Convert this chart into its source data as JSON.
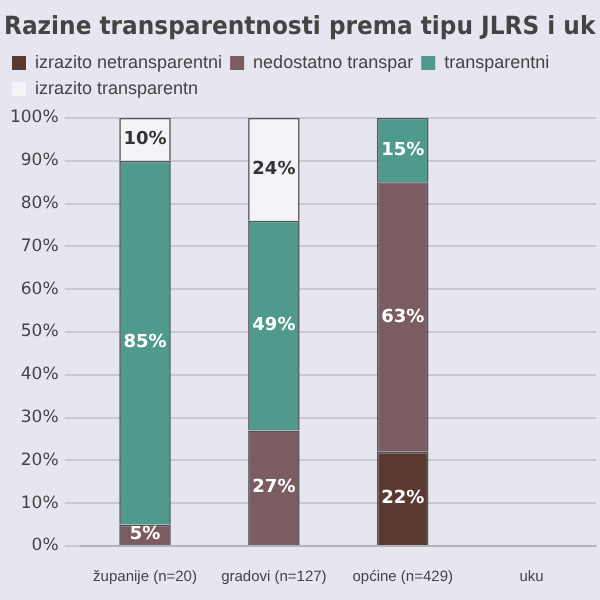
{
  "chart_data": {
    "type": "bar",
    "stacked": true,
    "title": "Razine transparentnosti prema tipu JLRS i uk",
    "categories": [
      "županije (n=20)",
      "gradovi (n=127)",
      "općine (n=429)",
      "uku"
    ],
    "series": [
      {
        "name": "izrazito netransparentni",
        "color": "#5a3a30",
        "values": [
          null,
          null,
          22,
          null
        ]
      },
      {
        "name": "nedostatno transpar",
        "color": "#7a5c62",
        "values": [
          5,
          27,
          63,
          null
        ]
      },
      {
        "name": "transparentni",
        "color": "#4f9a8c",
        "values": [
          85,
          49,
          15,
          null
        ]
      },
      {
        "name": "izrazito transparentn",
        "color": "#f4f4f8",
        "values": [
          10,
          24,
          null,
          null
        ]
      }
    ],
    "ylim": [
      0,
      100
    ],
    "yticks": [
      {
        "value": 0,
        "label": "0%"
      },
      {
        "value": 10,
        "label": "10%"
      },
      {
        "value": 20,
        "label": "20%"
      },
      {
        "value": 30,
        "label": "30%"
      },
      {
        "value": 40,
        "label": "40%"
      },
      {
        "value": 50,
        "label": "50%"
      },
      {
        "value": 60,
        "label": "60%"
      },
      {
        "value": 70,
        "label": "70%"
      },
      {
        "value": 80,
        "label": "80%"
      },
      {
        "value": 90,
        "label": "90%"
      },
      {
        "value": 100,
        "label": "100%"
      }
    ],
    "value_labels": [
      [
        null,
        null,
        "22%",
        null
      ],
      [
        "5%",
        "27%",
        "63%",
        null
      ],
      [
        "85%",
        "49%",
        "15%",
        null
      ],
      [
        "10%",
        "24%",
        null,
        null
      ]
    ],
    "grid": "y",
    "legend": "top"
  }
}
